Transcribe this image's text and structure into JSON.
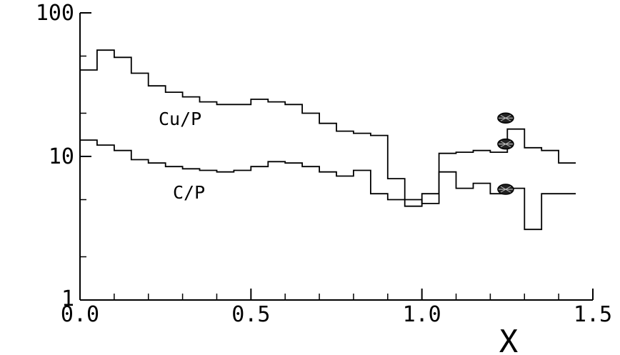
{
  "chart_data": {
    "type": "line",
    "style": "step",
    "title": "",
    "xlabel": "X",
    "ylabel": "",
    "xlim": [
      0.0,
      1.5
    ],
    "ylim": [
      1,
      100
    ],
    "yscale": "log",
    "grid": false,
    "legend": "none",
    "x_ticks": [
      "0.0",
      "0.5",
      "1.0",
      "1.5"
    ],
    "y_ticks": [
      "1",
      "10",
      "100"
    ],
    "bin_width": 0.05,
    "series": [
      {
        "name": "Cu/P",
        "bin_start": 0.0,
        "values": [
          40,
          55,
          49,
          38,
          31,
          28,
          26,
          24,
          23,
          23,
          25,
          24,
          23,
          20,
          17,
          15,
          14.5,
          14,
          7,
          5,
          4.7,
          10.5,
          10.7,
          11,
          10.7,
          15.5,
          11.5,
          11,
          9
        ]
      },
      {
        "name": "C/P",
        "bin_start": 0.0,
        "values": [
          13,
          12,
          11,
          9.5,
          9,
          8.5,
          8.2,
          8,
          7.8,
          8,
          8.5,
          9.2,
          9,
          8.5,
          7.8,
          7.3,
          8,
          5.5,
          5,
          4.5,
          5.5,
          7.8,
          6,
          6.5,
          5.5,
          6,
          3.1,
          5.5,
          5.5
        ]
      }
    ],
    "points": [
      {
        "x": 1.245,
        "y": 18.5
      },
      {
        "x": 1.245,
        "y": 12.2
      },
      {
        "x": 1.245,
        "y": 5.9
      }
    ]
  }
}
